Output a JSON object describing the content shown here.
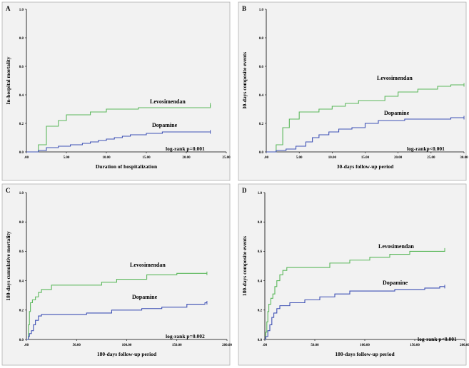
{
  "colors": {
    "levosimendan": "#5cb85c",
    "dopamine": "#3f51b5",
    "plot_bg": "#f2f2f2",
    "axis": "#000000"
  },
  "chart_data": [
    {
      "panel": "A",
      "type": "line",
      "step": true,
      "xlabel": "Duration of hospitalization",
      "ylabel": "In-hospital mortality",
      "xlim": [
        0,
        25
      ],
      "ylim": [
        0,
        1.0
      ],
      "xticks": [
        0,
        5,
        10,
        15,
        20,
        25
      ],
      "xtick_labels": [
        ".00",
        "5.00",
        "10.00",
        "15.00",
        "20.00",
        "25.00"
      ],
      "yticks": [
        0,
        0.2,
        0.4,
        0.6,
        0.8,
        1.0
      ],
      "ytick_labels": [
        "0.0",
        "0.2",
        "0.4",
        "0.6",
        "0.8",
        "1.0"
      ],
      "grid": false,
      "annotation": "log-rank p=0.001",
      "series": [
        {
          "name": "Levosimendan",
          "color": "#5cb85c",
          "points": [
            [
              0,
              0
            ],
            [
              1.5,
              0
            ],
            [
              1.5,
              0.05
            ],
            [
              2.5,
              0.05
            ],
            [
              2.5,
              0.18
            ],
            [
              4,
              0.18
            ],
            [
              4,
              0.22
            ],
            [
              5,
              0.22
            ],
            [
              5,
              0.26
            ],
            [
              8,
              0.26
            ],
            [
              8,
              0.28
            ],
            [
              10,
              0.28
            ],
            [
              10,
              0.3
            ],
            [
              14,
              0.3
            ],
            [
              14,
              0.31
            ],
            [
              23,
              0.31
            ],
            [
              23,
              0.33
            ]
          ]
        },
        {
          "name": "Dopamine",
          "color": "#3f51b5",
          "points": [
            [
              0,
              0
            ],
            [
              1.5,
              0
            ],
            [
              1.5,
              0.01
            ],
            [
              2.5,
              0.01
            ],
            [
              2.5,
              0.03
            ],
            [
              4,
              0.03
            ],
            [
              4,
              0.04
            ],
            [
              5.5,
              0.04
            ],
            [
              5.5,
              0.05
            ],
            [
              7,
              0.05
            ],
            [
              7,
              0.06
            ],
            [
              8,
              0.06
            ],
            [
              8,
              0.07
            ],
            [
              9,
              0.07
            ],
            [
              9,
              0.08
            ],
            [
              10,
              0.08
            ],
            [
              10,
              0.09
            ],
            [
              11,
              0.09
            ],
            [
              11,
              0.1
            ],
            [
              12,
              0.1
            ],
            [
              12,
              0.11
            ],
            [
              13,
              0.11
            ],
            [
              13,
              0.12
            ],
            [
              15,
              0.12
            ],
            [
              15,
              0.13
            ],
            [
              17,
              0.13
            ],
            [
              17,
              0.14
            ],
            [
              23,
              0.14
            ]
          ]
        }
      ]
    },
    {
      "panel": "B",
      "type": "line",
      "step": true,
      "xlabel": "30-days follow-up period",
      "ylabel": "30-days composite events",
      "xlim": [
        0,
        30
      ],
      "ylim": [
        0,
        1.0
      ],
      "xticks": [
        0,
        5,
        10,
        15,
        20,
        25,
        30
      ],
      "xtick_labels": [
        ".00",
        "5.00",
        "10.00",
        "15.00",
        "20.00",
        "25.00",
        "30.00"
      ],
      "yticks": [
        0,
        0.2,
        0.4,
        0.6,
        0.8,
        1.0
      ],
      "ytick_labels": [
        "0.0",
        "0.2",
        "0.4",
        "0.6",
        "0.8",
        "1.0"
      ],
      "grid": false,
      "annotation": "log-rankp<0.001",
      "series": [
        {
          "name": "Levosimendan",
          "color": "#5cb85c",
          "points": [
            [
              0,
              0
            ],
            [
              1.5,
              0
            ],
            [
              1.5,
              0.05
            ],
            [
              2.5,
              0.05
            ],
            [
              2.5,
              0.17
            ],
            [
              3.5,
              0.17
            ],
            [
              3.5,
              0.23
            ],
            [
              5,
              0.23
            ],
            [
              5,
              0.28
            ],
            [
              8,
              0.28
            ],
            [
              8,
              0.3
            ],
            [
              10,
              0.3
            ],
            [
              10,
              0.32
            ],
            [
              12,
              0.32
            ],
            [
              12,
              0.34
            ],
            [
              14,
              0.34
            ],
            [
              14,
              0.36
            ],
            [
              18,
              0.36
            ],
            [
              18,
              0.39
            ],
            [
              20,
              0.39
            ],
            [
              20,
              0.42
            ],
            [
              23,
              0.42
            ],
            [
              23,
              0.44
            ],
            [
              26,
              0.44
            ],
            [
              26,
              0.46
            ],
            [
              28,
              0.46
            ],
            [
              28,
              0.47
            ],
            [
              30,
              0.47
            ]
          ]
        },
        {
          "name": "Dopamine",
          "color": "#3f51b5",
          "points": [
            [
              0,
              0
            ],
            [
              1.5,
              0
            ],
            [
              1.5,
              0.01
            ],
            [
              3,
              0.01
            ],
            [
              3,
              0.02
            ],
            [
              4.5,
              0.02
            ],
            [
              4.5,
              0.04
            ],
            [
              6,
              0.04
            ],
            [
              6,
              0.07
            ],
            [
              7,
              0.07
            ],
            [
              7,
              0.1
            ],
            [
              8,
              0.1
            ],
            [
              8,
              0.12
            ],
            [
              9.5,
              0.12
            ],
            [
              9.5,
              0.14
            ],
            [
              11,
              0.14
            ],
            [
              11,
              0.16
            ],
            [
              13,
              0.16
            ],
            [
              13,
              0.17
            ],
            [
              15,
              0.17
            ],
            [
              15,
              0.2
            ],
            [
              17,
              0.2
            ],
            [
              17,
              0.22
            ],
            [
              21,
              0.22
            ],
            [
              21,
              0.23
            ],
            [
              28,
              0.23
            ],
            [
              28,
              0.24
            ],
            [
              30,
              0.24
            ]
          ]
        }
      ]
    },
    {
      "panel": "C",
      "type": "line",
      "step": true,
      "xlabel": "180-days follow-up period",
      "ylabel": "180-days cumulative mortality",
      "xlim": [
        0,
        200
      ],
      "ylim": [
        0,
        1.0
      ],
      "xticks": [
        0,
        50,
        100,
        150,
        200
      ],
      "xtick_labels": [
        ".00",
        "50.00",
        "100.00",
        "150.00",
        "200.00"
      ],
      "yticks": [
        0,
        0.2,
        0.4,
        0.6,
        0.8,
        1.0
      ],
      "ytick_labels": [
        "0.0",
        "0.2",
        "0.4",
        "0.6",
        "0.8",
        "1.0"
      ],
      "grid": false,
      "annotation": "log-rank p=0.002",
      "series": [
        {
          "name": "Levosimendan",
          "color": "#5cb85c",
          "points": [
            [
              0,
              0
            ],
            [
              2,
              0
            ],
            [
              2,
              0.1
            ],
            [
              3,
              0.1
            ],
            [
              3,
              0.19
            ],
            [
              4,
              0.19
            ],
            [
              4,
              0.25
            ],
            [
              6,
              0.25
            ],
            [
              6,
              0.27
            ],
            [
              9,
              0.27
            ],
            [
              9,
              0.29
            ],
            [
              12,
              0.29
            ],
            [
              12,
              0.32
            ],
            [
              15,
              0.32
            ],
            [
              15,
              0.34
            ],
            [
              25,
              0.34
            ],
            [
              25,
              0.37
            ],
            [
              75,
              0.37
            ],
            [
              75,
              0.39
            ],
            [
              90,
              0.39
            ],
            [
              90,
              0.41
            ],
            [
              120,
              0.41
            ],
            [
              120,
              0.44
            ],
            [
              150,
              0.44
            ],
            [
              150,
              0.45
            ],
            [
              180,
              0.45
            ]
          ]
        },
        {
          "name": "Dopamine",
          "color": "#3f51b5",
          "points": [
            [
              0,
              0
            ],
            [
              2,
              0
            ],
            [
              2,
              0.02
            ],
            [
              3,
              0.02
            ],
            [
              3,
              0.04
            ],
            [
              5,
              0.04
            ],
            [
              5,
              0.06
            ],
            [
              7,
              0.06
            ],
            [
              7,
              0.1
            ],
            [
              9,
              0.1
            ],
            [
              9,
              0.13
            ],
            [
              12,
              0.13
            ],
            [
              12,
              0.16
            ],
            [
              15,
              0.16
            ],
            [
              15,
              0.17
            ],
            [
              60,
              0.17
            ],
            [
              60,
              0.18
            ],
            [
              85,
              0.18
            ],
            [
              85,
              0.2
            ],
            [
              115,
              0.2
            ],
            [
              115,
              0.21
            ],
            [
              135,
              0.21
            ],
            [
              135,
              0.22
            ],
            [
              160,
              0.22
            ],
            [
              160,
              0.24
            ],
            [
              178,
              0.24
            ],
            [
              178,
              0.25
            ],
            [
              180,
              0.25
            ]
          ]
        }
      ]
    },
    {
      "panel": "D",
      "type": "line",
      "step": true,
      "xlabel": "180-days follow-up period",
      "ylabel": "180-days composite events",
      "xlim": [
        0,
        200
      ],
      "ylim": [
        0,
        1.0
      ],
      "xticks": [
        0,
        50,
        100,
        150,
        200
      ],
      "xtick_labels": [
        ".00",
        "50.00",
        "100.00",
        "150.00",
        "200.00"
      ],
      "yticks": [
        0,
        0.2,
        0.4,
        0.6,
        0.8,
        1.0
      ],
      "ytick_labels": [
        "0.0",
        "0.2",
        "0.4",
        "0.6",
        "0.8",
        "1.0"
      ],
      "grid": false,
      "annotation": "log-rank p<0.001",
      "series": [
        {
          "name": "Levosimendan",
          "color": "#5cb85c",
          "points": [
            [
              0,
              0
            ],
            [
              1,
              0
            ],
            [
              1,
              0.05
            ],
            [
              2,
              0.05
            ],
            [
              2,
              0.12
            ],
            [
              3,
              0.12
            ],
            [
              3,
              0.19
            ],
            [
              4,
              0.19
            ],
            [
              4,
              0.24
            ],
            [
              6,
              0.24
            ],
            [
              6,
              0.28
            ],
            [
              8,
              0.28
            ],
            [
              8,
              0.31
            ],
            [
              10,
              0.31
            ],
            [
              10,
              0.36
            ],
            [
              12,
              0.36
            ],
            [
              12,
              0.4
            ],
            [
              15,
              0.4
            ],
            [
              15,
              0.44
            ],
            [
              18,
              0.44
            ],
            [
              18,
              0.47
            ],
            [
              22,
              0.47
            ],
            [
              22,
              0.49
            ],
            [
              65,
              0.49
            ],
            [
              65,
              0.52
            ],
            [
              85,
              0.52
            ],
            [
              85,
              0.54
            ],
            [
              105,
              0.54
            ],
            [
              105,
              0.56
            ],
            [
              125,
              0.56
            ],
            [
              125,
              0.58
            ],
            [
              145,
              0.58
            ],
            [
              145,
              0.6
            ],
            [
              180,
              0.6
            ],
            [
              180,
              0.61
            ]
          ]
        },
        {
          "name": "Dopamine",
          "color": "#3f51b5",
          "points": [
            [
              0,
              0
            ],
            [
              1,
              0
            ],
            [
              1,
              0.02
            ],
            [
              3,
              0.02
            ],
            [
              3,
              0.06
            ],
            [
              5,
              0.06
            ],
            [
              5,
              0.1
            ],
            [
              7,
              0.1
            ],
            [
              7,
              0.15
            ],
            [
              9,
              0.15
            ],
            [
              9,
              0.18
            ],
            [
              12,
              0.18
            ],
            [
              12,
              0.21
            ],
            [
              15,
              0.21
            ],
            [
              15,
              0.23
            ],
            [
              25,
              0.23
            ],
            [
              25,
              0.25
            ],
            [
              40,
              0.25
            ],
            [
              40,
              0.27
            ],
            [
              55,
              0.27
            ],
            [
              55,
              0.29
            ],
            [
              70,
              0.29
            ],
            [
              70,
              0.31
            ],
            [
              85,
              0.31
            ],
            [
              85,
              0.33
            ],
            [
              130,
              0.33
            ],
            [
              130,
              0.34
            ],
            [
              160,
              0.34
            ],
            [
              160,
              0.35
            ],
            [
              175,
              0.35
            ],
            [
              175,
              0.36
            ],
            [
              180,
              0.36
            ]
          ]
        }
      ]
    }
  ]
}
